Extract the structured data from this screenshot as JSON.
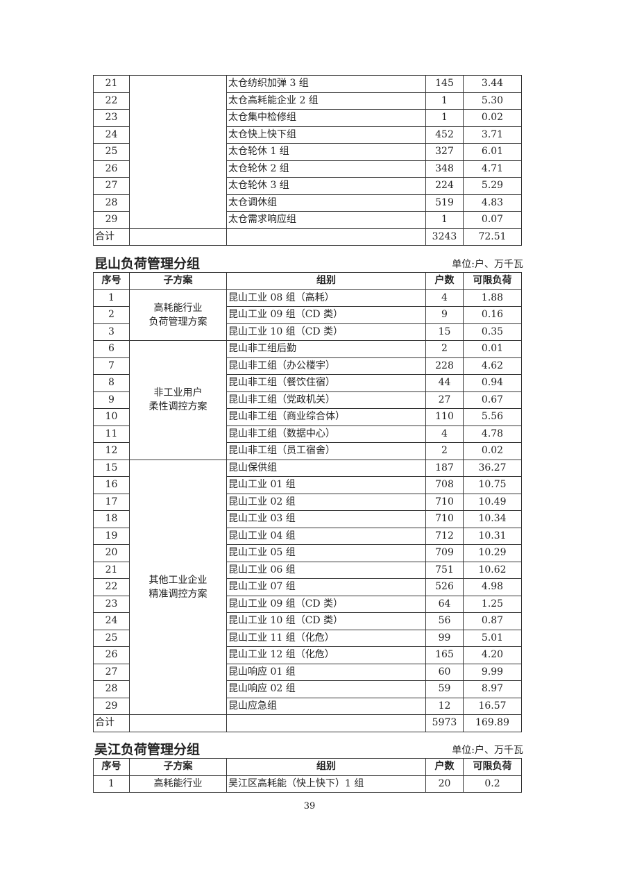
{
  "headers": [
    "序号",
    "子方案",
    "组别",
    "户数",
    "可限负荷"
  ],
  "unit_label": "单位:户、万千瓦",
  "taicang": {
    "groups": [
      {
        "scheme": "",
        "rows": [
          {
            "no": "21",
            "name": "太仓纺织加弹 3 组",
            "households": "145",
            "load": "3.44"
          },
          {
            "no": "22",
            "name": "太仓高耗能企业 2 组",
            "households": "1",
            "load": "5.30"
          },
          {
            "no": "23",
            "name": "太仓集中检修组",
            "households": "1",
            "load": "0.02"
          },
          {
            "no": "24",
            "name": "太仓快上快下组",
            "households": "452",
            "load": "3.71"
          },
          {
            "no": "25",
            "name": "太仓轮休 1 组",
            "households": "327",
            "load": "6.01"
          },
          {
            "no": "26",
            "name": "太仓轮休 2 组",
            "households": "348",
            "load": "4.71"
          },
          {
            "no": "27",
            "name": "太仓轮休 3 组",
            "households": "224",
            "load": "5.29"
          },
          {
            "no": "28",
            "name": "太仓调休组",
            "households": "519",
            "load": "4.83"
          },
          {
            "no": "29",
            "name": "太仓需求响应组",
            "households": "1",
            "load": "0.07"
          }
        ]
      }
    ],
    "total": {
      "label": "合计",
      "households": "3243",
      "load": "72.51"
    }
  },
  "kunshan": {
    "title": "昆山负荷管理分组",
    "groups": [
      {
        "scheme": "高耗能行业\n负荷管理方案",
        "rows": [
          {
            "no": "1",
            "name": "昆山工业 08 组（高耗）",
            "households": "4",
            "load": "1.88"
          },
          {
            "no": "2",
            "name": "昆山工业 09 组（CD 类）",
            "households": "9",
            "load": "0.16"
          },
          {
            "no": "3",
            "name": "昆山工业 10 组（CD 类）",
            "households": "15",
            "load": "0.35"
          }
        ]
      },
      {
        "scheme": "非工业用户\n柔性调控方案",
        "rows": [
          {
            "no": "6",
            "name": "昆山非工组后勤",
            "households": "2",
            "load": "0.01"
          },
          {
            "no": "7",
            "name": "昆山非工组（办公楼宇）",
            "households": "228",
            "load": "4.62"
          },
          {
            "no": "8",
            "name": "昆山非工组（餐饮住宿）",
            "households": "44",
            "load": "0.94"
          },
          {
            "no": "9",
            "name": "昆山非工组（党政机关）",
            "households": "27",
            "load": "0.67"
          },
          {
            "no": "10",
            "name": "昆山非工组（商业综合体）",
            "households": "110",
            "load": "5.56"
          },
          {
            "no": "11",
            "name": "昆山非工组（数据中心）",
            "households": "4",
            "load": "4.78"
          },
          {
            "no": "12",
            "name": "昆山非工组（员工宿舍）",
            "households": "2",
            "load": "0.02"
          }
        ]
      },
      {
        "scheme": "其他工业企业\n精准调控方案",
        "rows": [
          {
            "no": "15",
            "name": "昆山保供组",
            "households": "187",
            "load": "36.27"
          },
          {
            "no": "16",
            "name": "昆山工业 01 组",
            "households": "708",
            "load": "10.75"
          },
          {
            "no": "17",
            "name": "昆山工业 02 组",
            "households": "710",
            "load": "10.49"
          },
          {
            "no": "18",
            "name": "昆山工业 03 组",
            "households": "710",
            "load": "10.34"
          },
          {
            "no": "19",
            "name": "昆山工业 04 组",
            "households": "712",
            "load": "10.31"
          },
          {
            "no": "20",
            "name": "昆山工业 05 组",
            "households": "709",
            "load": "10.29"
          },
          {
            "no": "21",
            "name": "昆山工业 06 组",
            "households": "751",
            "load": "10.62"
          },
          {
            "no": "22",
            "name": "昆山工业 07 组",
            "households": "526",
            "load": "4.98"
          },
          {
            "no": "23",
            "name": "昆山工业 09 组（CD 类）",
            "households": "64",
            "load": "1.25"
          },
          {
            "no": "24",
            "name": "昆山工业 10 组（CD 类）",
            "households": "56",
            "load": "0.87"
          },
          {
            "no": "25",
            "name": "昆山工业 11 组（化危）",
            "households": "99",
            "load": "5.01"
          },
          {
            "no": "26",
            "name": "昆山工业 12 组（化危）",
            "households": "165",
            "load": "4.20"
          },
          {
            "no": "27",
            "name": "昆山响应 01 组",
            "households": "60",
            "load": "9.99"
          },
          {
            "no": "28",
            "name": "昆山响应 02 组",
            "households": "59",
            "load": "8.97"
          },
          {
            "no": "29",
            "name": "昆山应急组",
            "households": "12",
            "load": "16.57"
          }
        ]
      }
    ],
    "total": {
      "label": "合计",
      "households": "5973",
      "load": "169.89"
    }
  },
  "wujiang": {
    "title": "吴江负荷管理分组",
    "groups": [
      {
        "scheme": "高耗能行业",
        "rows": [
          {
            "no": "1",
            "name": "吴江区高耗能（快上快下）1 组",
            "households": "20",
            "load": "0.2"
          }
        ]
      }
    ]
  },
  "page_number": "39"
}
